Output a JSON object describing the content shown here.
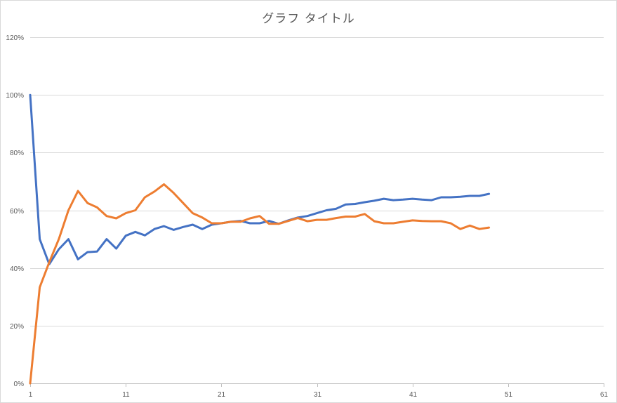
{
  "chart_data": {
    "type": "line",
    "title": "グラフ タイトル",
    "xlabel": "",
    "ylabel": "",
    "xlim": [
      1,
      61
    ],
    "ylim": [
      0,
      1.2
    ],
    "x_ticks": [
      1,
      11,
      21,
      31,
      41,
      51,
      61
    ],
    "y_ticks": [
      0,
      0.2,
      0.4,
      0.6,
      0.8,
      1.0,
      1.2
    ],
    "y_tick_labels": [
      "0%",
      "20%",
      "40%",
      "60%",
      "80%",
      "100%",
      "120%"
    ],
    "x_tick_labels": [
      "1",
      "11",
      "21",
      "31",
      "41",
      "51",
      "61"
    ],
    "grid": true,
    "legend": "none",
    "series": [
      {
        "color": "#4472c4",
        "x": [
          1,
          2,
          3,
          4,
          5,
          6,
          7,
          8,
          9,
          10,
          11,
          12,
          13,
          14,
          15,
          16,
          17,
          18,
          19,
          20,
          21,
          22,
          23,
          24,
          25,
          26,
          27,
          28,
          29,
          30,
          31,
          32,
          33,
          34,
          35,
          36,
          37,
          38,
          39,
          40,
          41,
          42,
          43,
          44,
          45,
          46,
          47,
          48,
          49
        ],
        "values": [
          1.0,
          0.5,
          0.413,
          0.465,
          0.5,
          0.43,
          0.455,
          0.457,
          0.5,
          0.467,
          0.512,
          0.525,
          0.513,
          0.535,
          0.545,
          0.532,
          0.542,
          0.55,
          0.535,
          0.55,
          0.555,
          0.56,
          0.563,
          0.555,
          0.555,
          0.563,
          0.553,
          0.565,
          0.575,
          0.58,
          0.59,
          0.6,
          0.605,
          0.62,
          0.622,
          0.628,
          0.633,
          0.64,
          0.635,
          0.637,
          0.64,
          0.637,
          0.635,
          0.645,
          0.645,
          0.647,
          0.65,
          0.65,
          0.657
        ]
      },
      {
        "color": "#ed7d31",
        "x": [
          1,
          2,
          3,
          4,
          5,
          6,
          7,
          8,
          9,
          10,
          11,
          12,
          13,
          14,
          15,
          16,
          17,
          18,
          19,
          20,
          21,
          22,
          23,
          24,
          25,
          26,
          27,
          28,
          29,
          30,
          31,
          32,
          33,
          34,
          35,
          36,
          37,
          38,
          39,
          40,
          41,
          42,
          43,
          44,
          45,
          46,
          47,
          48,
          49
        ],
        "values": [
          0.0,
          0.333,
          0.42,
          0.5,
          0.6,
          0.667,
          0.625,
          0.61,
          0.58,
          0.572,
          0.59,
          0.6,
          0.645,
          0.665,
          0.69,
          0.66,
          0.625,
          0.59,
          0.575,
          0.555,
          0.555,
          0.56,
          0.56,
          0.572,
          0.58,
          0.553,
          0.553,
          0.563,
          0.573,
          0.562,
          0.567,
          0.567,
          0.573,
          0.578,
          0.578,
          0.587,
          0.562,
          0.555,
          0.555,
          0.56,
          0.565,
          0.563,
          0.562,
          0.562,
          0.555,
          0.535,
          0.547,
          0.535,
          0.54
        ]
      }
    ]
  }
}
